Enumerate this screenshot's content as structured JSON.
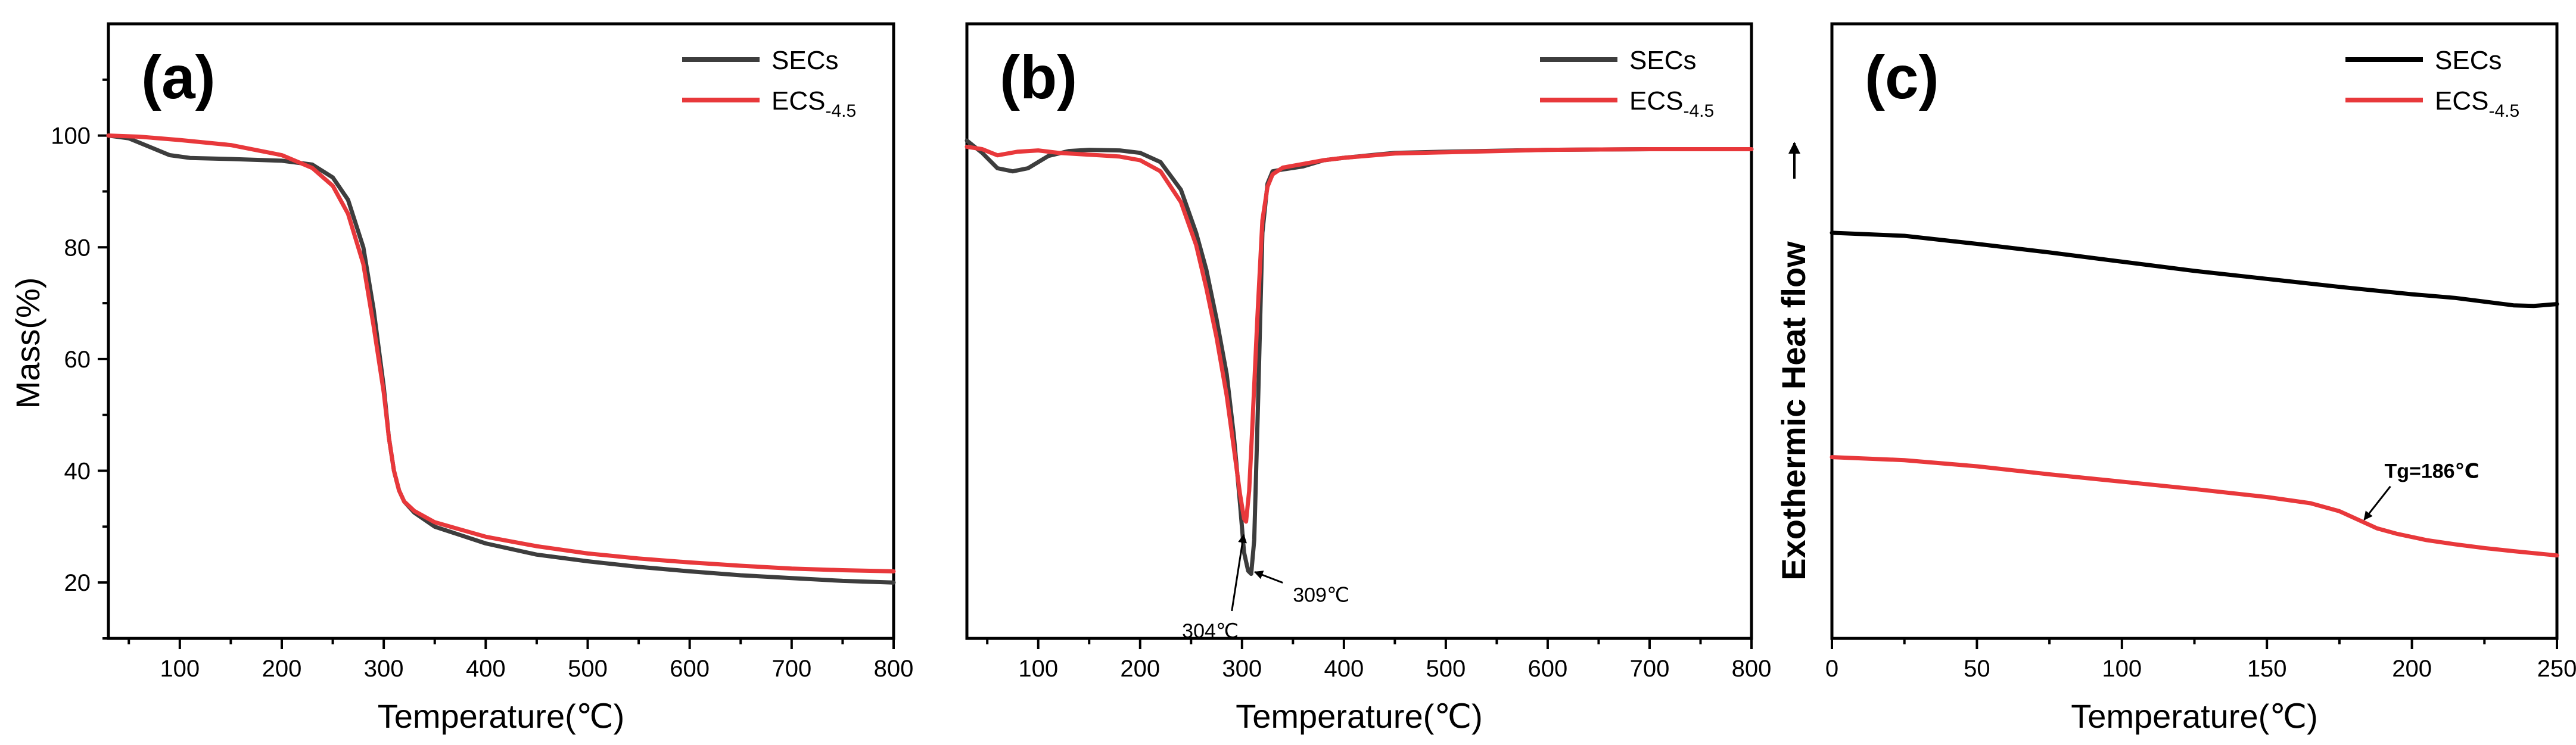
{
  "colors": {
    "black_series": "#3d3d3d",
    "black_series_c": "#000000",
    "red_series": "#e8383b"
  },
  "chart_data": [
    {
      "panel": "(a)",
      "type": "line",
      "xlabel": "Temperature(℃)",
      "ylabel": "Mass(%)",
      "xlim": [
        30,
        800
      ],
      "ylim": [
        10,
        120
      ],
      "xticks": [
        100,
        200,
        300,
        400,
        500,
        600,
        700,
        800
      ],
      "yticks": [
        20,
        40,
        60,
        80,
        100
      ],
      "legend": {
        "location": "top-right"
      },
      "series": [
        {
          "name": "SECs",
          "name_main": "SECs",
          "name_sub": "",
          "color": "#3d3d3d",
          "x": [
            30,
            50,
            70,
            90,
            110,
            150,
            200,
            230,
            250,
            265,
            280,
            290,
            300,
            305,
            310,
            315,
            320,
            330,
            350,
            400,
            450,
            500,
            550,
            600,
            650,
            700,
            750,
            800
          ],
          "y": [
            100,
            99.5,
            98,
            96.5,
            96,
            95.8,
            95.5,
            94.8,
            92.5,
            88.5,
            80,
            69,
            55,
            46,
            40,
            36.5,
            34.5,
            32.5,
            30,
            27,
            25,
            23.8,
            22.8,
            22,
            21.3,
            20.8,
            20.3,
            20
          ]
        },
        {
          "name": "ECS-4.5",
          "name_main": "ECS",
          "name_sub": "-4.5",
          "color": "#e8383b",
          "x": [
            30,
            60,
            100,
            150,
            200,
            230,
            250,
            265,
            280,
            290,
            300,
            305,
            310,
            315,
            320,
            330,
            350,
            400,
            450,
            500,
            550,
            600,
            650,
            700,
            750,
            800
          ],
          "y": [
            100,
            99.8,
            99.2,
            98.3,
            96.5,
            94.2,
            91,
            86,
            77,
            66,
            54,
            46,
            40,
            36.5,
            34.5,
            32.8,
            30.8,
            28.2,
            26.5,
            25.2,
            24.3,
            23.6,
            23,
            22.5,
            22.2,
            22
          ]
        }
      ]
    },
    {
      "panel": "(b)",
      "type": "line",
      "xlabel": "Temperature(℃)",
      "ylabel": "",
      "xlim": [
        30,
        800
      ],
      "ylim": [
        0,
        100
      ],
      "xticks": [
        100,
        200,
        300,
        400,
        500,
        600,
        700,
        800
      ],
      "legend": {
        "location": "top-right"
      },
      "annotations": [
        {
          "text": "304℃",
          "x": 304,
          "y": 19
        },
        {
          "text": "309℃",
          "x": 309,
          "y": 11
        }
      ],
      "series": [
        {
          "name": "SECs",
          "name_main": "SECs",
          "name_sub": "",
          "color": "#3d3d3d",
          "x": [
            30,
            45,
            60,
            75,
            90,
            110,
            130,
            150,
            180,
            200,
            220,
            240,
            255,
            265,
            275,
            285,
            292,
            298,
            302,
            306,
            309,
            312,
            316,
            320,
            325,
            330,
            340,
            360,
            380,
            400,
            450,
            500,
            600,
            700,
            800
          ],
          "y": [
            81,
            79,
            76.5,
            76,
            76.5,
            78.5,
            79.3,
            79.5,
            79.4,
            79,
            77.5,
            73,
            66,
            60,
            52,
            43,
            33,
            22,
            14,
            11,
            10.5,
            16,
            40,
            66,
            74,
            76,
            76.3,
            76.8,
            77.8,
            78.2,
            79,
            79.2,
            79.5,
            79.6,
            79.6
          ]
        },
        {
          "name": "ECS-4.5",
          "name_main": "ECS",
          "name_sub": "-4.5",
          "color": "#e8383b",
          "x": [
            30,
            45,
            60,
            80,
            100,
            120,
            140,
            160,
            180,
            200,
            220,
            240,
            255,
            265,
            275,
            285,
            292,
            298,
            302,
            304,
            307,
            310,
            315,
            320,
            325,
            330,
            340,
            360,
            380,
            400,
            450,
            500,
            600,
            700,
            800
          ],
          "y": [
            80,
            79.6,
            78.6,
            79.2,
            79.4,
            79,
            78.8,
            78.6,
            78.4,
            77.8,
            76,
            71,
            64,
            57,
            49,
            39.5,
            31,
            23.5,
            19.5,
            19,
            24,
            34,
            52,
            68,
            73.5,
            75.5,
            76.6,
            77.2,
            77.8,
            78.2,
            78.9,
            79.1,
            79.5,
            79.6,
            79.6
          ]
        }
      ]
    },
    {
      "panel": "(c)",
      "type": "line",
      "xlabel": "Temperature(℃)",
      "ylabel": "Exothermic Heat flow",
      "ylabel_arrow": "→",
      "xlim": [
        0,
        250
      ],
      "ylim": [
        0,
        100
      ],
      "xticks": [
        0,
        50,
        100,
        150,
        200,
        250
      ],
      "legend": {
        "location": "top-right"
      },
      "annotations": [
        {
          "text": "Tg=186℃",
          "x": 186,
          "y": 23
        }
      ],
      "series": [
        {
          "name": "SECs",
          "name_main": "SECs",
          "name_sub": "",
          "color": "#000000",
          "x": [
            0,
            25,
            50,
            75,
            100,
            125,
            150,
            175,
            200,
            215,
            225,
            235,
            242,
            250
          ],
          "y": [
            66,
            65.5,
            64.2,
            62.8,
            61.3,
            59.8,
            58.5,
            57.2,
            56,
            55.4,
            54.8,
            54.2,
            54.1,
            54.4
          ]
        },
        {
          "name": "ECS-4.5",
          "name_main": "ECS",
          "name_sub": "-4.5",
          "color": "#e8383b",
          "x": [
            0,
            25,
            50,
            75,
            100,
            125,
            150,
            165,
            175,
            182,
            188,
            195,
            205,
            215,
            225,
            235,
            250
          ],
          "y": [
            29.5,
            29,
            28,
            26.7,
            25.5,
            24.3,
            23,
            22,
            20.7,
            19.2,
            17.9,
            17,
            16,
            15.3,
            14.7,
            14.2,
            13.5
          ]
        }
      ]
    }
  ]
}
